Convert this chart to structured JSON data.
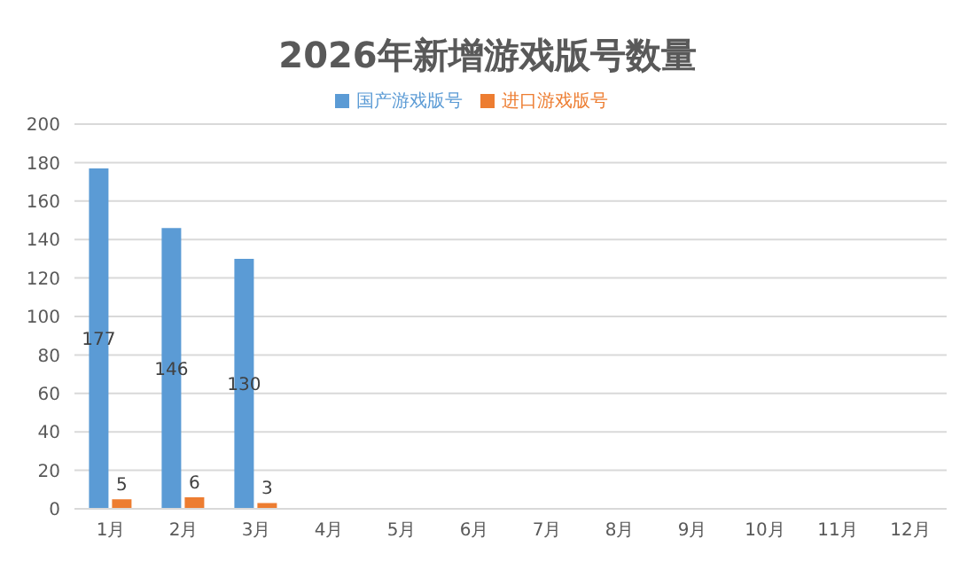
{
  "chart_data": {
    "type": "bar",
    "title": "2026年新增游戏版号数量",
    "categories": [
      "1月",
      "2月",
      "3月",
      "4月",
      "5月",
      "6月",
      "7月",
      "8月",
      "9月",
      "10月",
      "11月",
      "12月"
    ],
    "series": [
      {
        "name": "国产游戏版号",
        "color": "#5b9bd5",
        "values": [
          177,
          146,
          130,
          null,
          null,
          null,
          null,
          null,
          null,
          null,
          null,
          null
        ]
      },
      {
        "name": "进口游戏版号",
        "color": "#ed7d31",
        "values": [
          5,
          6,
          3,
          null,
          null,
          null,
          null,
          null,
          null,
          null,
          null,
          null
        ]
      }
    ],
    "ylim": [
      0,
      200
    ],
    "yticks": [
      0,
      20,
      40,
      60,
      80,
      100,
      120,
      140,
      160,
      180,
      200
    ],
    "grid": "y",
    "legend": "top",
    "data_labels": true
  }
}
